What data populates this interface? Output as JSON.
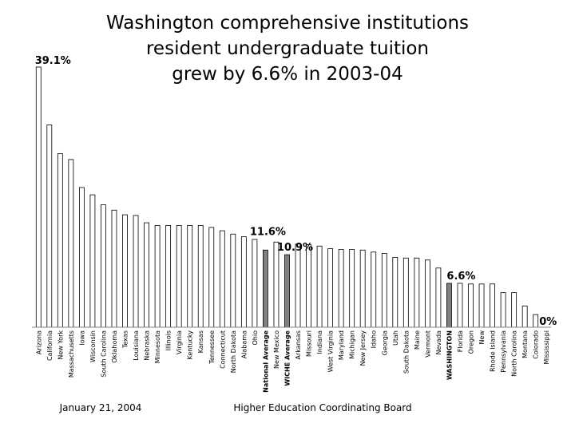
{
  "chart_data": {
    "type": "bar",
    "title_lines": [
      "Washington comprehensive institutions",
      "resident undergraduate tuition",
      "grew by 6.6% in 2003-04"
    ],
    "xlabel": "",
    "ylabel": "",
    "ylim": [
      0,
      39.1
    ],
    "grid": false,
    "categories": [
      "Arizona",
      "California",
      "New York",
      "Massachusetts",
      "Iowa",
      "Wisconsin",
      "South Carolina",
      "Oklahoma",
      "Texas",
      "Louisiana",
      "Nebraska",
      "Minnesota",
      "Illinois",
      "Virginia",
      "Kentucky",
      "Kansas",
      "Tennessee",
      "Connecticut",
      "North Dakota",
      "Alabama",
      "Ohio",
      "National Average",
      "New Mexico",
      "WICHE Average",
      "Arkansas",
      "Missouri",
      "Indiana",
      "West Virginia",
      "Maryland",
      "Michigan",
      "New Jersey",
      "Idaho",
      "Georgia",
      "Utah",
      "South Dakota",
      "Maine",
      "Vermont",
      "Nevada",
      "WASHINGTON",
      "Florida",
      "Oregon",
      "New",
      "Rhode Island",
      "Pennsylvania",
      "North Carolina",
      "Montana",
      "Colorado",
      "Mississippi"
    ],
    "values": [
      39.1,
      30.4,
      26.1,
      25.2,
      21.0,
      19.9,
      18.4,
      17.6,
      16.9,
      16.8,
      15.7,
      15.3,
      15.3,
      15.3,
      15.3,
      15.3,
      15.0,
      14.5,
      14.0,
      13.6,
      13.2,
      11.6,
      12.8,
      10.9,
      12.5,
      12.4,
      12.2,
      11.8,
      11.7,
      11.7,
      11.6,
      11.3,
      11.1,
      10.5,
      10.4,
      10.4,
      10.1,
      8.9,
      6.6,
      6.6,
      6.5,
      6.5,
      6.5,
      5.2,
      5.2,
      3.2,
      1.9,
      0
    ],
    "highlighted": [
      "National Average",
      "WICHE Average",
      "WASHINGTON"
    ],
    "bold_labels": [
      "National Average",
      "WICHE Average",
      "WASHINGTON"
    ],
    "data_labels": [
      {
        "category": "Arizona",
        "text": "39.1%"
      },
      {
        "category": "National Average",
        "text": "11.6%"
      },
      {
        "category": "WICHE Average",
        "text": "10.9%"
      },
      {
        "category": "WASHINGTON",
        "text": "6.6%"
      },
      {
        "category": "Mississippi",
        "text": "0%"
      }
    ],
    "colors": {
      "bar": "#ffffff",
      "highlight": "#808080",
      "outline": "#000000",
      "axis": "#808080"
    }
  },
  "footer": {
    "date": "January 21, 2004",
    "source": "Higher Education Coordinating Board"
  }
}
